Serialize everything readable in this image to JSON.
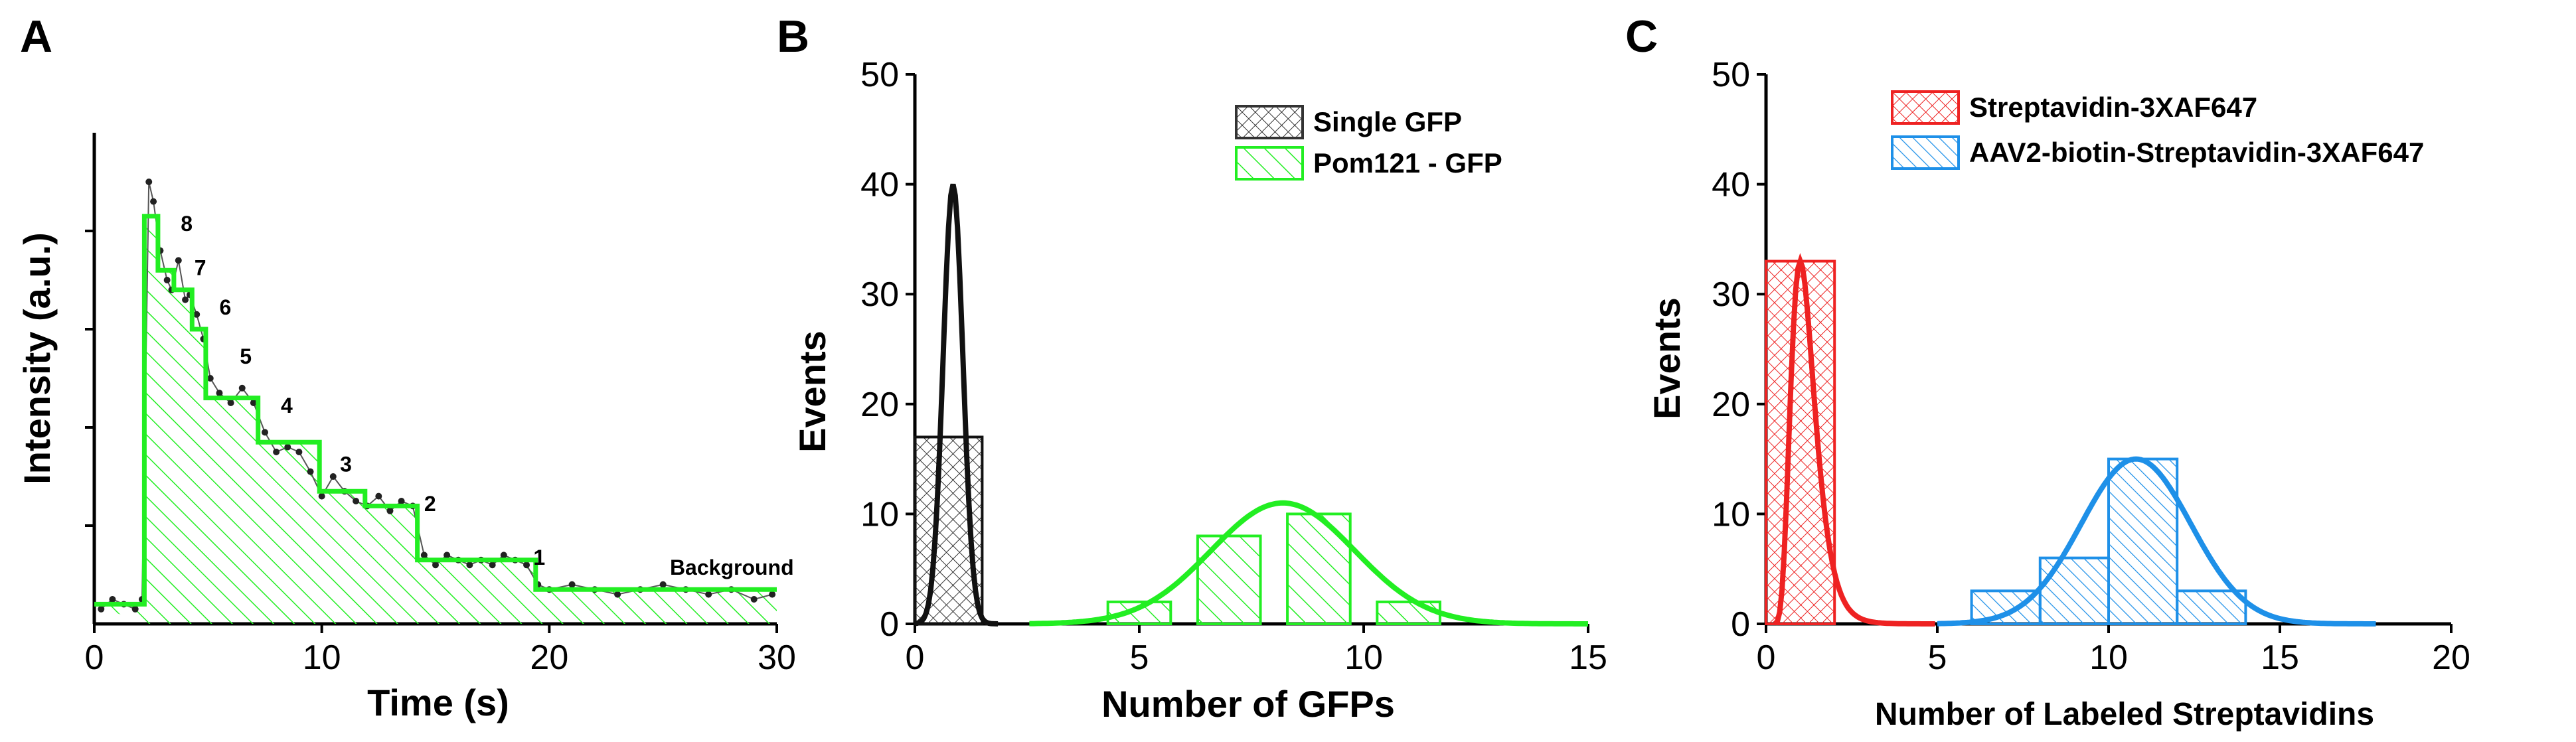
{
  "colors": {
    "green": "#22ee22",
    "black": "#111111",
    "gray": "#555555",
    "red": "#ee2222",
    "blue": "#1e90e8"
  },
  "chart_data": [
    {
      "panel": "A",
      "type": "line",
      "title": "",
      "xlabel": "Time (s)",
      "ylabel": "Intensity (a.u.)",
      "xlim": [
        0,
        30
      ],
      "ylim": [
        0,
        1
      ],
      "x_ticks": [
        0,
        10,
        20,
        30
      ],
      "show_y_tick_labels": false,
      "grid": false,
      "step_trace": {
        "name": "step fit",
        "x": [
          0,
          2.2,
          2.2,
          2.8,
          2.8,
          3.5,
          3.5,
          4.3,
          4.3,
          4.9,
          4.9,
          7.2,
          7.2,
          9.9,
          9.9,
          11.9,
          11.9,
          14.2,
          14.2,
          19.4,
          19.4,
          30
        ],
        "y": [
          0.04,
          0.04,
          0.83,
          0.83,
          0.72,
          0.72,
          0.68,
          0.68,
          0.6,
          0.6,
          0.46,
          0.46,
          0.37,
          0.37,
          0.27,
          0.27,
          0.24,
          0.24,
          0.13,
          0.13,
          0.07,
          0.07
        ]
      },
      "raw_trace": {
        "name": "raw data",
        "x": [
          0.3,
          0.8,
          1.3,
          1.8,
          2.1,
          2.4,
          2.6,
          2.9,
          3.2,
          3.4,
          3.7,
          4.0,
          4.2,
          4.5,
          4.8,
          5.1,
          5.5,
          6.0,
          6.5,
          7.0,
          7.5,
          8.0,
          8.5,
          9.0,
          9.5,
          10.0,
          10.5,
          11.0,
          11.5,
          12.0,
          12.5,
          13.0,
          13.5,
          14.0,
          14.5,
          15.0,
          15.5,
          16.0,
          16.5,
          17.0,
          17.5,
          18.0,
          18.5,
          19.0,
          19.5,
          20.0,
          21.0,
          22.0,
          23.0,
          24.0,
          25.0,
          26.0,
          27.0,
          28.0,
          29.0,
          29.8
        ],
        "y": [
          0.03,
          0.05,
          0.04,
          0.03,
          0.05,
          0.9,
          0.86,
          0.76,
          0.7,
          0.68,
          0.74,
          0.66,
          0.67,
          0.63,
          0.58,
          0.5,
          0.47,
          0.45,
          0.48,
          0.45,
          0.39,
          0.35,
          0.36,
          0.35,
          0.31,
          0.26,
          0.3,
          0.27,
          0.25,
          0.24,
          0.26,
          0.23,
          0.25,
          0.24,
          0.14,
          0.12,
          0.14,
          0.13,
          0.12,
          0.13,
          0.12,
          0.14,
          0.13,
          0.12,
          0.08,
          0.07,
          0.08,
          0.07,
          0.06,
          0.07,
          0.08,
          0.07,
          0.06,
          0.07,
          0.05,
          0.06
        ]
      },
      "annotations": [
        {
          "text": "8",
          "x": 3.8,
          "y": 0.8
        },
        {
          "text": "7",
          "x": 4.4,
          "y": 0.71
        },
        {
          "text": "6",
          "x": 5.5,
          "y": 0.63
        },
        {
          "text": "5",
          "x": 6.4,
          "y": 0.53
        },
        {
          "text": "4",
          "x": 8.2,
          "y": 0.43
        },
        {
          "text": "3",
          "x": 10.8,
          "y": 0.31
        },
        {
          "text": "2",
          "x": 14.5,
          "y": 0.23
        },
        {
          "text": "1",
          "x": 19.3,
          "y": 0.12
        },
        {
          "text": "Background",
          "x": 25.3,
          "y": 0.1
        }
      ]
    },
    {
      "panel": "B",
      "type": "bar",
      "title": "",
      "xlabel": "Number of GFPs",
      "ylabel": "Events",
      "xlim": [
        0,
        15
      ],
      "ylim": [
        0,
        50
      ],
      "x_ticks": [
        0,
        5,
        10,
        15
      ],
      "y_ticks": [
        0,
        10,
        20,
        30,
        40,
        50
      ],
      "grid": false,
      "legend_position": "top-right",
      "series": [
        {
          "name": "Single GFP",
          "color": "#111111",
          "hatch": "crosshatch",
          "bins": [
            {
              "x0": 0,
              "x1": 1.5,
              "value": 17
            }
          ],
          "fit": {
            "type": "gaussian",
            "amplitude": 40,
            "center": 0.85,
            "sigma": 0.22
          }
        },
        {
          "name": "Pom121 - GFP",
          "color": "#22ee22",
          "hatch": "diagonal",
          "bins": [
            {
              "x0": 4.3,
              "x1": 5.7,
              "value": 2
            },
            {
              "x0": 6.3,
              "x1": 7.7,
              "value": 8
            },
            {
              "x0": 8.3,
              "x1": 9.7,
              "value": 10
            },
            {
              "x0": 10.3,
              "x1": 11.7,
              "value": 2
            }
          ],
          "fit": {
            "type": "gaussian",
            "amplitude": 11,
            "center": 8.2,
            "sigma": 1.6
          }
        }
      ]
    },
    {
      "panel": "C",
      "type": "bar",
      "title": "",
      "xlabel": "Number of Labeled Streptavidins",
      "ylabel": "Events",
      "xlim": [
        0,
        20
      ],
      "ylim": [
        0,
        50
      ],
      "x_ticks": [
        0,
        5,
        10,
        15,
        20
      ],
      "y_ticks": [
        0,
        10,
        20,
        30,
        40,
        50
      ],
      "grid": false,
      "legend_position": "top-right",
      "series": [
        {
          "name": "Streptavidin-3XAF647",
          "color": "#ee2222",
          "hatch": "crosshatch",
          "bins": [
            {
              "x0": 0,
              "x1": 2,
              "value": 33
            }
          ],
          "fit": {
            "type": "lognormal",
            "amplitude": 33,
            "center": 1.0,
            "sigma": 0.35
          }
        },
        {
          "name": "AAV2-biotin-Streptavidin-3XAF647",
          "color": "#1e90e8",
          "hatch": "diagonal",
          "bins": [
            {
              "x0": 6,
              "x1": 8,
              "value": 3
            },
            {
              "x0": 8,
              "x1": 10,
              "value": 6
            },
            {
              "x0": 10,
              "x1": 12,
              "value": 15
            },
            {
              "x0": 12,
              "x1": 14,
              "value": 3
            }
          ],
          "fit": {
            "type": "gaussian",
            "amplitude": 15,
            "center": 10.8,
            "sigma": 1.6
          }
        }
      ]
    }
  ]
}
